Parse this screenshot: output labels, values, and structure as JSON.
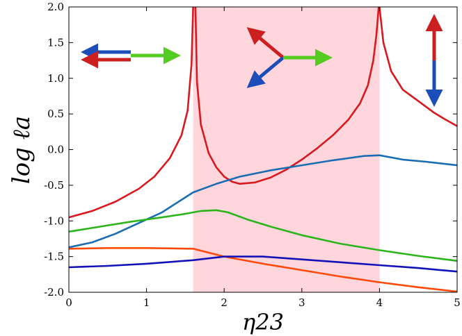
{
  "chart_data": {
    "type": "line",
    "xlabel": "η23",
    "ylabel": "log ℓa",
    "xlim": [
      0,
      5
    ],
    "ylim": [
      -2.0,
      2.0
    ],
    "x_ticks": [
      "0",
      "1",
      "2",
      "3",
      "4",
      "5"
    ],
    "y_ticks": [
      "-2.0",
      "-1.5",
      "-1.0",
      "-0.5",
      "0.0",
      "0.5",
      "1.0",
      "1.5",
      "2.0"
    ],
    "shaded_region": {
      "x": [
        1.6,
        4.0
      ],
      "color": "#ffd6dc"
    },
    "grid": false,
    "series": [
      {
        "color": "#d9181f",
        "points": [
          [
            0,
            -0.95
          ],
          [
            0.3,
            -0.86
          ],
          [
            0.6,
            -0.73
          ],
          [
            0.9,
            -0.55
          ],
          [
            1.1,
            -0.38
          ],
          [
            1.3,
            -0.12
          ],
          [
            1.45,
            0.2
          ],
          [
            1.53,
            0.55
          ],
          [
            1.58,
            1.2
          ],
          [
            1.6,
            2.0
          ]
        ]
      },
      {
        "color": "#d9181f",
        "points": [
          [
            1.63,
            2.0
          ],
          [
            1.65,
            0.95
          ],
          [
            1.7,
            0.35
          ],
          [
            1.8,
            -0.05
          ],
          [
            1.9,
            -0.25
          ],
          [
            2.0,
            -0.38
          ],
          [
            2.1,
            -0.45
          ],
          [
            2.2,
            -0.48
          ],
          [
            2.4,
            -0.46
          ],
          [
            2.6,
            -0.39
          ],
          [
            2.8,
            -0.28
          ],
          [
            3.0,
            -0.14
          ],
          [
            3.2,
            0.02
          ],
          [
            3.4,
            0.2
          ],
          [
            3.6,
            0.42
          ],
          [
            3.75,
            0.65
          ],
          [
            3.85,
            0.9
          ],
          [
            3.92,
            1.25
          ],
          [
            3.96,
            1.6
          ],
          [
            3.99,
            2.0
          ]
        ]
      },
      {
        "color": "#d9181f",
        "points": [
          [
            4.0,
            2.0
          ],
          [
            4.05,
            1.5
          ],
          [
            4.15,
            1.1
          ],
          [
            4.3,
            0.84
          ],
          [
            4.5,
            0.68
          ],
          [
            4.7,
            0.52
          ],
          [
            4.85,
            0.42
          ],
          [
            5.0,
            0.33
          ]
        ]
      },
      {
        "color": "#1b6db3",
        "points": [
          [
            0,
            -1.37
          ],
          [
            0.3,
            -1.3
          ],
          [
            0.6,
            -1.18
          ],
          [
            0.9,
            -1.03
          ],
          [
            1.2,
            -0.88
          ],
          [
            1.4,
            -0.74
          ],
          [
            1.6,
            -0.6
          ],
          [
            1.9,
            -0.48
          ],
          [
            2.2,
            -0.38
          ],
          [
            2.6,
            -0.29
          ],
          [
            3.0,
            -0.22
          ],
          [
            3.4,
            -0.15
          ],
          [
            3.8,
            -0.09
          ],
          [
            4.0,
            -0.08
          ],
          [
            4.3,
            -0.14
          ],
          [
            4.6,
            -0.17
          ],
          [
            5.0,
            -0.22
          ]
        ]
      },
      {
        "color": "#2bb51b",
        "points": [
          [
            0,
            -1.15
          ],
          [
            0.4,
            -1.08
          ],
          [
            0.8,
            -1.01
          ],
          [
            1.2,
            -0.95
          ],
          [
            1.5,
            -0.9
          ],
          [
            1.7,
            -0.86
          ],
          [
            1.9,
            -0.85
          ],
          [
            2.05,
            -0.88
          ],
          [
            2.3,
            -0.98
          ],
          [
            2.6,
            -1.08
          ],
          [
            3.0,
            -1.2
          ],
          [
            3.5,
            -1.32
          ],
          [
            4.0,
            -1.41
          ],
          [
            4.5,
            -1.49
          ],
          [
            5.0,
            -1.56
          ]
        ]
      },
      {
        "color": "#ff4a0a",
        "points": [
          [
            0,
            -1.39
          ],
          [
            0.5,
            -1.38
          ],
          [
            1.0,
            -1.38
          ],
          [
            1.6,
            -1.39
          ],
          [
            2.0,
            -1.5
          ],
          [
            2.5,
            -1.6
          ],
          [
            3.0,
            -1.69
          ],
          [
            3.5,
            -1.78
          ],
          [
            4.0,
            -1.86
          ],
          [
            4.5,
            -1.93
          ],
          [
            5.0,
            -1.99
          ]
        ]
      },
      {
        "color": "#1212b8",
        "points": [
          [
            0,
            -1.65
          ],
          [
            0.5,
            -1.63
          ],
          [
            1.0,
            -1.6
          ],
          [
            1.6,
            -1.55
          ],
          [
            2.0,
            -1.5
          ],
          [
            2.5,
            -1.5
          ],
          [
            3.0,
            -1.54
          ],
          [
            3.5,
            -1.58
          ],
          [
            4.0,
            -1.62
          ],
          [
            4.5,
            -1.66
          ],
          [
            5.0,
            -1.71
          ]
        ]
      }
    ]
  },
  "insets": {
    "left": {
      "colors": [
        "#1d4db8",
        "#cc1f1f",
        "#55cc22"
      ]
    },
    "middle": {
      "colors": [
        "#cc1f1f",
        "#1d4db8",
        "#55cc22"
      ]
    },
    "right": {
      "colors": [
        "#cc1f1f",
        "#1d4db8"
      ]
    }
  }
}
